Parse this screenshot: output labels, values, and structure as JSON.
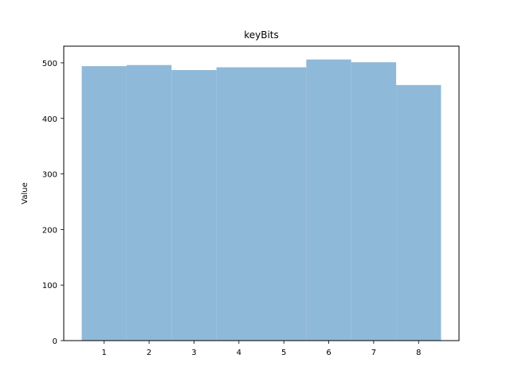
{
  "chart_data": {
    "type": "bar",
    "title": "keyBits",
    "xlabel": "",
    "ylabel": "Value",
    "categories": [
      "1",
      "2",
      "3",
      "4",
      "5",
      "6",
      "7",
      "8"
    ],
    "values": [
      494,
      496,
      487,
      492,
      492,
      506,
      501,
      460
    ],
    "ylim": [
      0,
      530
    ],
    "xlim": [
      0.1,
      8.9
    ],
    "yticks": [
      0,
      100,
      200,
      300,
      400,
      500
    ],
    "bar_width": 1.0,
    "bar_color": "#8fb9d9",
    "grid": false,
    "legend": "none"
  }
}
